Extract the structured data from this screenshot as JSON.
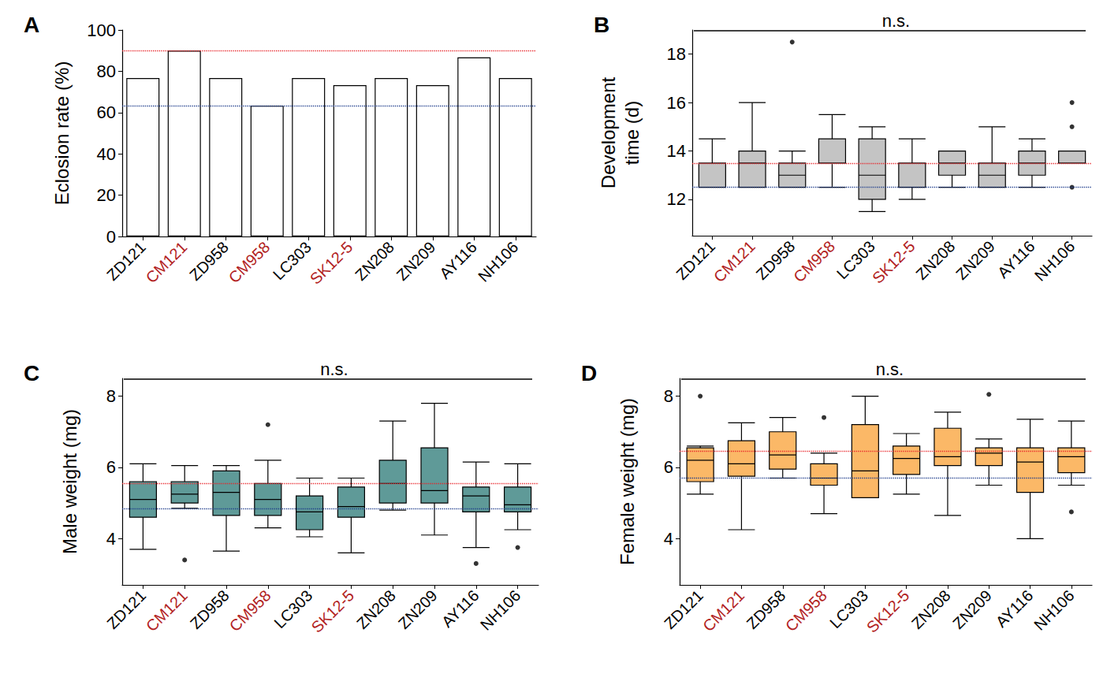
{
  "chart_data": [
    {
      "panel": "A",
      "type": "bar",
      "y_label": "Eclosion rate (%)",
      "categories": [
        "ZD121",
        "CM121",
        "ZD958",
        "CM958",
        "LC303",
        "SK12-5",
        "ZN208",
        "ZN209",
        "AY116",
        "NH106"
      ],
      "values": [
        76.7,
        90,
        76.7,
        63.3,
        76.7,
        73.3,
        76.7,
        73.3,
        86.7,
        76.7
      ],
      "color": "#ffffff",
      "ylim": [
        0,
        100
      ],
      "yticks": [
        0,
        20,
        40,
        60,
        80,
        100
      ],
      "ref_lines": [
        {
          "value": 90,
          "color": "#e8262b"
        },
        {
          "value": 63.3,
          "color": "#1f3d8c"
        }
      ],
      "grid": false
    },
    {
      "panel": "B",
      "type": "boxplot",
      "y_label": "Development\ntime (d)",
      "annotation": "n.s.",
      "categories": [
        "ZD121",
        "CM121",
        "ZD958",
        "CM958",
        "LC303",
        "SK12-5",
        "ZN208",
        "ZN209",
        "AY116",
        "NH106"
      ],
      "boxes": [
        [
          12.5,
          12.5,
          12.5,
          13.5,
          14.5
        ],
        [
          12.5,
          12.5,
          13.5,
          14,
          16
        ],
        [
          12.5,
          12.5,
          13,
          13.5,
          14
        ],
        [
          12.5,
          13.5,
          13.5,
          14.5,
          15.5
        ],
        [
          11.5,
          12,
          13,
          14.5,
          15
        ],
        [
          12,
          12.5,
          12.5,
          13.5,
          14.5
        ],
        [
          12.5,
          13,
          13.5,
          14,
          14
        ],
        [
          12.5,
          12.5,
          13,
          13.5,
          15
        ],
        [
          12.5,
          13,
          13.5,
          14,
          14.5
        ],
        [
          13.5,
          13.5,
          13.5,
          14,
          14
        ]
      ],
      "outliers": [
        [],
        [],
        [
          18.5
        ],
        [],
        [],
        [],
        [],
        [],
        [],
        [
          16,
          15,
          12.5
        ]
      ],
      "color": "#c4c4c4",
      "ylim": [
        10.5,
        19
      ],
      "yticks": [
        12,
        14,
        16,
        18
      ],
      "ref_lines": [
        {
          "value": 13.5,
          "color": "#e8262b"
        },
        {
          "value": 12.5,
          "color": "#1f3d8c"
        }
      ],
      "grid": false
    },
    {
      "panel": "C",
      "type": "boxplot",
      "y_label": "Male weight (mg)",
      "annotation": "n.s.",
      "categories": [
        "ZD121",
        "CM121",
        "ZD958",
        "CM958",
        "LC303",
        "SK12-5",
        "ZN208",
        "ZN209",
        "AY116",
        "NH106"
      ],
      "boxes": [
        [
          3.7,
          4.6,
          5.1,
          5.6,
          6.1
        ],
        [
          4.85,
          5.0,
          5.25,
          5.6,
          6.05
        ],
        [
          3.65,
          4.65,
          5.3,
          5.9,
          6.05
        ],
        [
          4.3,
          4.65,
          5.1,
          5.55,
          6.2
        ],
        [
          4.05,
          4.25,
          4.75,
          5.2,
          5.7
        ],
        [
          3.6,
          4.6,
          4.9,
          5.45,
          5.7
        ],
        [
          4.8,
          5.0,
          5.55,
          6.2,
          7.3
        ],
        [
          4.1,
          5.0,
          5.35,
          6.55,
          7.8
        ],
        [
          3.75,
          4.75,
          5.2,
          5.45,
          6.15
        ],
        [
          4.25,
          4.75,
          4.95,
          5.45,
          6.1
        ]
      ],
      "outliers": [
        [],
        [
          3.4
        ],
        [],
        [
          7.2
        ],
        [],
        [],
        [],
        [],
        [
          3.3
        ],
        [
          3.75
        ]
      ],
      "color": "#5f9a98",
      "ylim": [
        2.7,
        8.5
      ],
      "yticks": [
        4,
        6,
        8
      ],
      "ref_lines": [
        {
          "value": 5.55,
          "color": "#e8262b"
        },
        {
          "value": 4.85,
          "color": "#1f3d8c"
        }
      ],
      "grid": false
    },
    {
      "panel": "D",
      "type": "boxplot",
      "y_label": "Female weight (mg)",
      "annotation": "n.s.",
      "categories": [
        "ZD121",
        "CM121",
        "ZD958",
        "CM958",
        "LC303",
        "SK12-5",
        "ZN208",
        "ZN209",
        "AY116",
        "NH106"
      ],
      "boxes": [
        [
          5.25,
          5.6,
          6.2,
          6.55,
          6.6
        ],
        [
          4.25,
          5.75,
          6.1,
          6.75,
          7.25
        ],
        [
          5.7,
          5.95,
          6.35,
          7.0,
          7.4
        ],
        [
          4.7,
          5.5,
          5.7,
          6.1,
          6.4
        ],
        [
          5.15,
          5.15,
          5.9,
          7.2,
          8.0
        ],
        [
          5.25,
          5.8,
          6.25,
          6.6,
          6.95
        ],
        [
          4.65,
          6.05,
          6.3,
          7.1,
          7.55
        ],
        [
          5.5,
          6.05,
          6.4,
          6.55,
          6.8
        ],
        [
          4.0,
          5.3,
          6.15,
          6.55,
          7.35
        ],
        [
          5.5,
          5.85,
          6.3,
          6.55,
          7.3
        ]
      ],
      "outliers": [
        [
          8.0
        ],
        [],
        [],
        [
          7.4
        ],
        [],
        [],
        [],
        [
          8.05
        ],
        [],
        [
          4.75
        ]
      ],
      "color": "#fbb867",
      "ylim": [
        2.7,
        8.5
      ],
      "yticks": [
        4,
        6,
        8
      ],
      "ref_lines": [
        {
          "value": 6.45,
          "color": "#e8262b"
        },
        {
          "value": 5.7,
          "color": "#1f3d8c"
        }
      ],
      "grid": false
    }
  ]
}
